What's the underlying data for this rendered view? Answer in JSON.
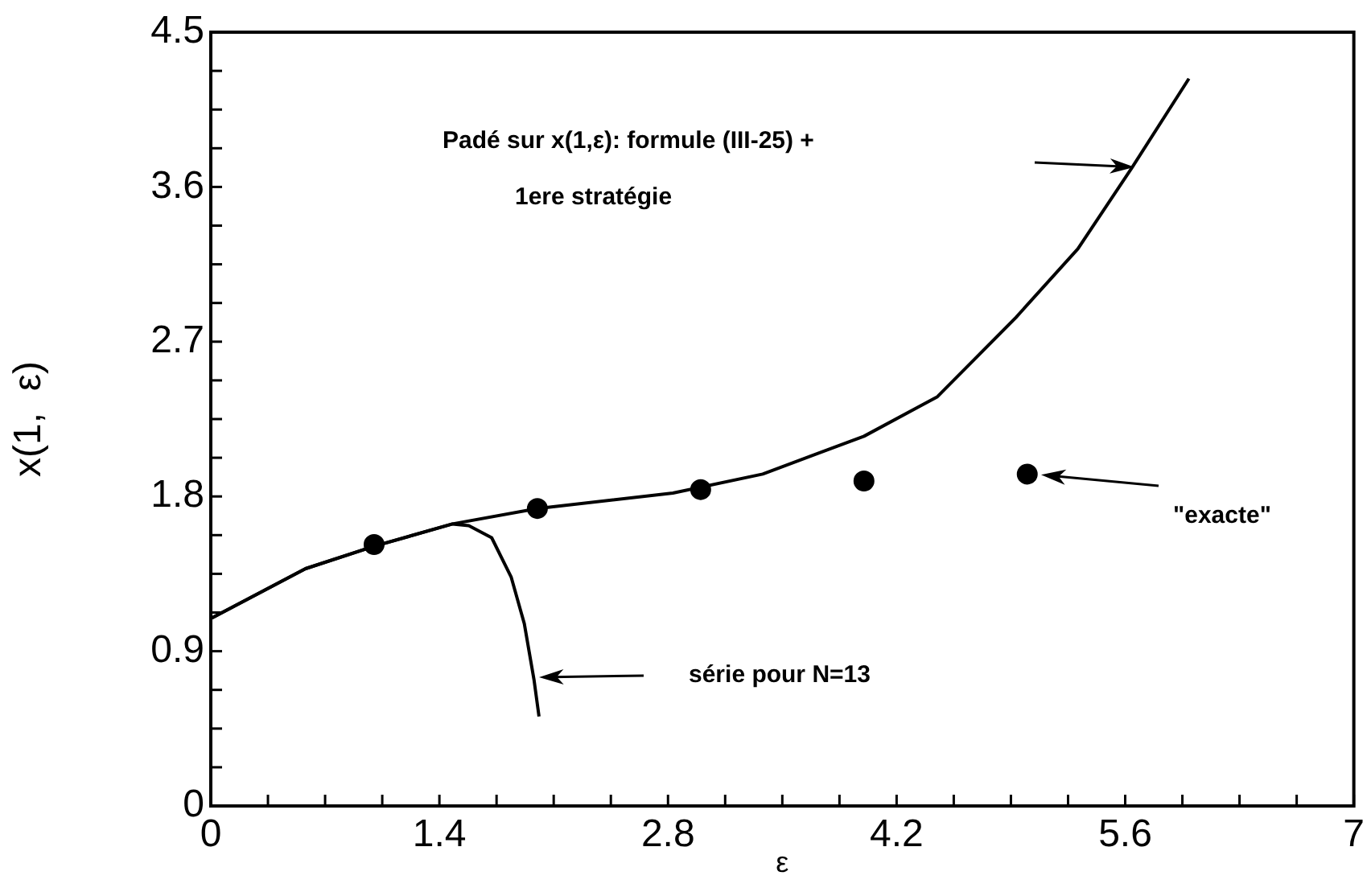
{
  "chart_data": {
    "type": "line",
    "xlabel": "ε",
    "ylabel": "x(1,  ε)",
    "xlim": [
      0,
      7
    ],
    "ylim": [
      0,
      4.5
    ],
    "xticks": [
      0,
      {
        "value": 0.35,
        "label": null
      },
      {
        "value": 0.7,
        "label": null
      },
      {
        "value": 1.05,
        "label": null
      },
      1.4,
      {
        "value": 1.75,
        "label": null
      },
      {
        "value": 2.1,
        "label": null
      },
      {
        "value": 2.45,
        "label": null
      },
      2.8,
      {
        "value": 3.15,
        "label": null
      },
      {
        "value": 3.5,
        "label": null
      },
      {
        "value": 3.85,
        "label": null
      },
      4.2,
      {
        "value": 4.55,
        "label": null
      },
      {
        "value": 4.9,
        "label": null
      },
      {
        "value": 5.25,
        "label": null
      },
      5.6,
      {
        "value": 5.95,
        "label": null
      },
      {
        "value": 6.3,
        "label": null
      },
      {
        "value": 6.65,
        "label": null
      },
      7
    ],
    "yticks": [
      0,
      {
        "value": 0.225,
        "label": null
      },
      {
        "value": 0.45,
        "label": null
      },
      {
        "value": 0.675,
        "label": null
      },
      0.9,
      {
        "value": 1.125,
        "label": null
      },
      {
        "value": 1.35,
        "label": null
      },
      {
        "value": 1.575,
        "label": null
      },
      1.8,
      {
        "value": 2.025,
        "label": null
      },
      {
        "value": 2.25,
        "label": null
      },
      {
        "value": 2.475,
        "label": null
      },
      2.7,
      {
        "value": 2.925,
        "label": null
      },
      {
        "value": 3.15,
        "label": null
      },
      {
        "value": 3.375,
        "label": null
      },
      3.6,
      {
        "value": 3.825,
        "label": null
      },
      {
        "value": 4.05,
        "label": null
      },
      {
        "value": 4.275,
        "label": null
      },
      4.5
    ],
    "grid": false,
    "legend": false,
    "series": [
      {
        "type": "line",
        "marker": "none",
        "line_style": "solid",
        "color": "#000000",
        "x": [
          0,
          0.58,
          1.0,
          1.48,
          2.0,
          2.83,
          3.38,
          4.0,
          4.45,
          4.93,
          5.31,
          5.64,
          5.99
        ],
        "values": [
          1.09,
          1.38,
          1.51,
          1.64,
          1.73,
          1.82,
          1.93,
          2.15,
          2.38,
          2.84,
          3.24,
          3.71,
          4.23
        ]
      },
      {
        "type": "line",
        "marker": "none",
        "line_style": "solid",
        "color": "#000000",
        "x": [
          0,
          0.58,
          1.0,
          1.48,
          1.58,
          1.72,
          1.84,
          1.92,
          1.98,
          2.01
        ],
        "values": [
          1.09,
          1.38,
          1.51,
          1.64,
          1.63,
          1.56,
          1.33,
          1.06,
          0.73,
          0.52
        ]
      },
      {
        "type": "scatter",
        "marker": "circle",
        "color": "#000000",
        "x": [
          1.0,
          2.0,
          3.0,
          4.0,
          5.0
        ],
        "values": [
          1.52,
          1.73,
          1.84,
          1.89,
          1.93
        ]
      }
    ],
    "annotations": [
      "Padé sur x(1,ε): formule (III-25) +\n1ere stratégie",
      "série pour N=13",
      "\"exacte\""
    ]
  }
}
